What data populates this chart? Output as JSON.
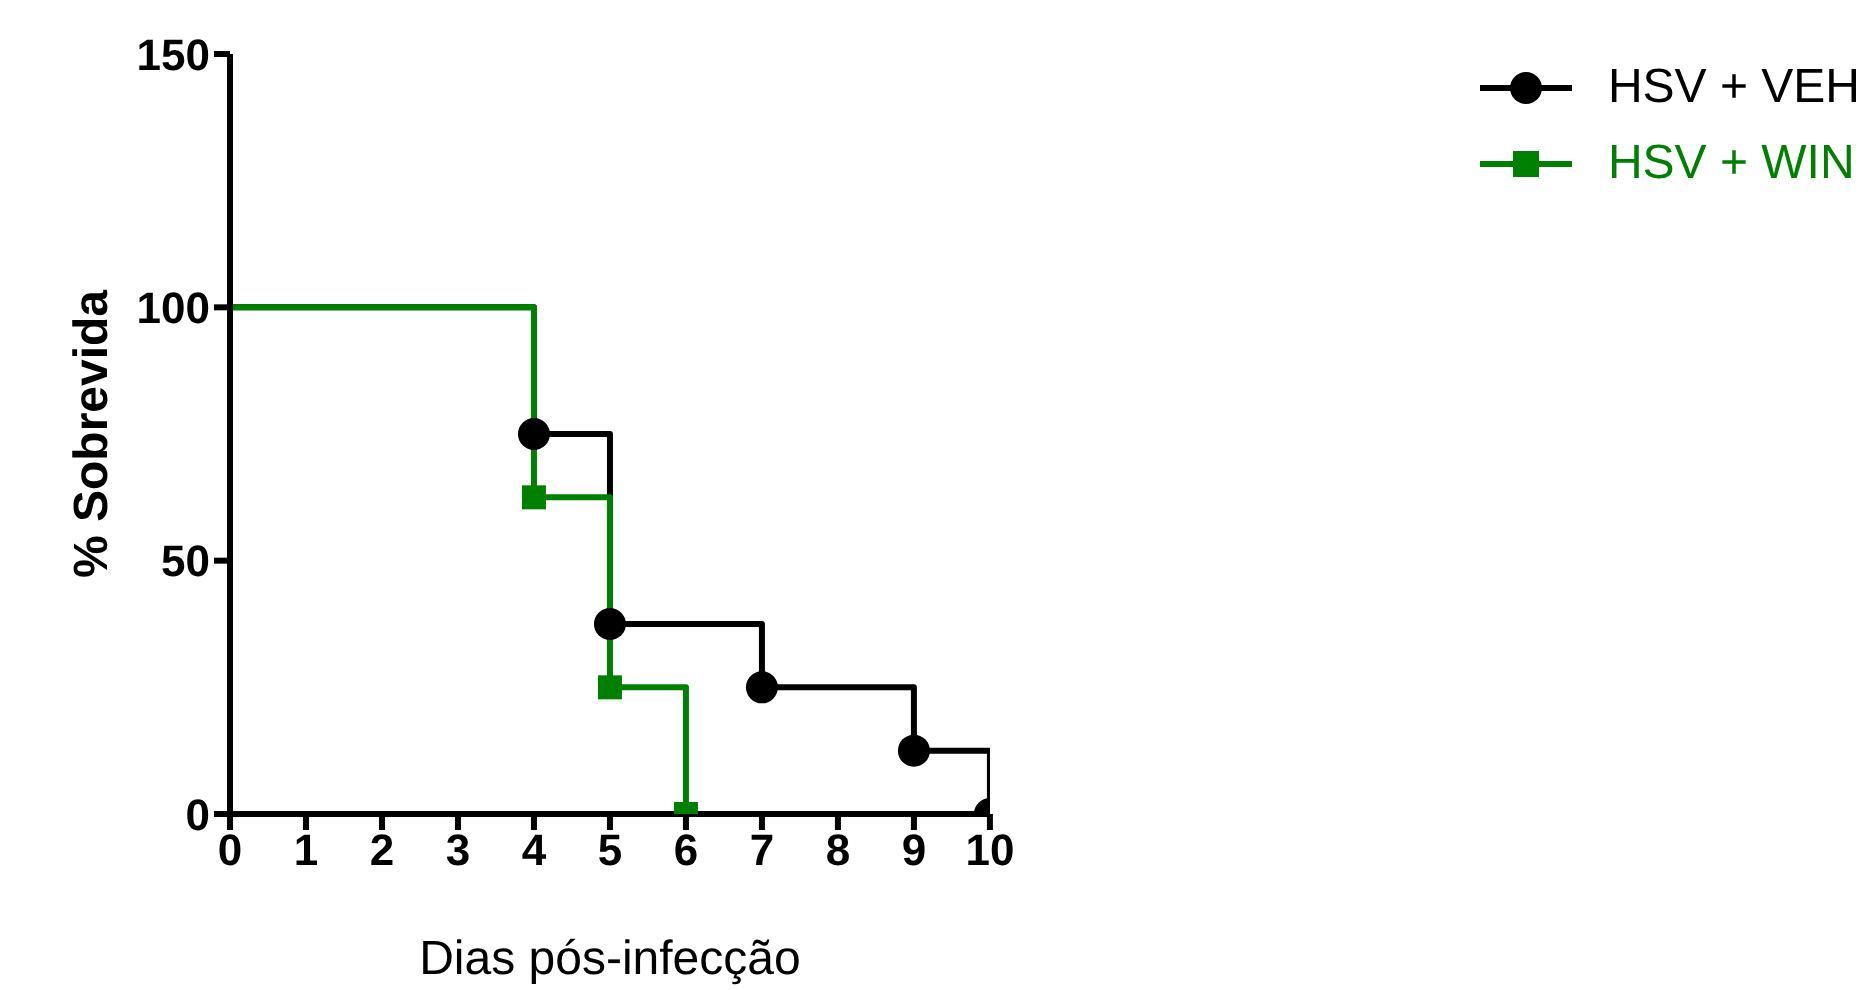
{
  "chart_data": {
    "type": "step",
    "xlabel": "Dias pós-infecção",
    "ylabel": "% Sobrevida",
    "xlim": [
      0,
      10
    ],
    "xticks": [
      0,
      1,
      2,
      3,
      4,
      5,
      6,
      7,
      8,
      9,
      10
    ],
    "ylim": [
      0,
      150
    ],
    "yticks": [
      0,
      50,
      100,
      150
    ],
    "legend": "top right",
    "grid": false,
    "series": [
      {
        "name": "HSV + VEH",
        "color": "#000000",
        "marker": "circle",
        "x": [
          0,
          4,
          5,
          7,
          9,
          10
        ],
        "values": [
          100,
          75,
          37.5,
          25,
          12.5,
          0
        ]
      },
      {
        "name": "HSV + WIN",
        "color": "#008000",
        "marker": "square",
        "x": [
          0,
          4,
          5,
          6
        ],
        "values": [
          100,
          62.5,
          25,
          0
        ]
      }
    ]
  }
}
